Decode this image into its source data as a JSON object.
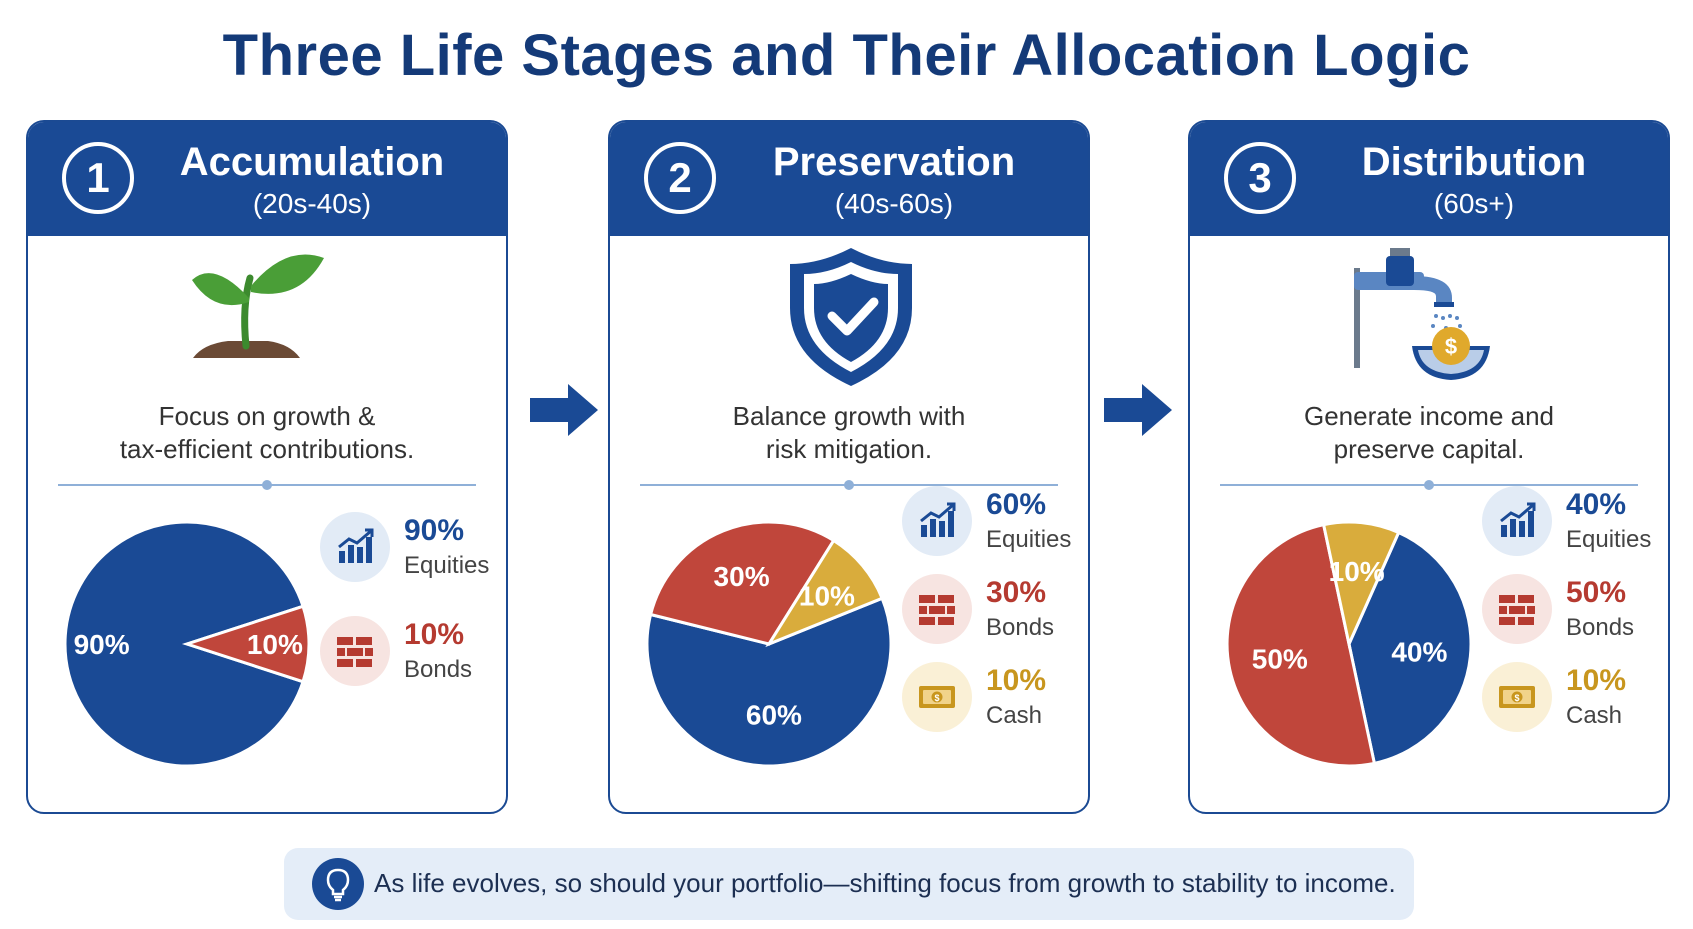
{
  "title": "Three Life Stages and Their Allocation Logic",
  "colors": {
    "header": "#1a4a95",
    "equities": "#1a4a95",
    "bonds": "#c0463b",
    "cash": "#d9ac3c"
  },
  "stages": [
    {
      "number": "1",
      "name": "Accumulation",
      "range": "(20s-40s)",
      "icon": "seedling-icon",
      "description_line1": "Focus on growth &",
      "description_line2": "tax-efficient contributions.",
      "legend": [
        {
          "pct": "90%",
          "name": "Equities",
          "icon": "growth-chart-icon"
        },
        {
          "pct": "10%",
          "name": "Bonds",
          "icon": "bricks-icon"
        }
      ]
    },
    {
      "number": "2",
      "name": "Preservation",
      "range": "(40s-60s)",
      "icon": "shield-check-icon",
      "description_line1": "Balance growth with",
      "description_line2": "risk mitigation.",
      "legend": [
        {
          "pct": "60%",
          "name": "Equities",
          "icon": "growth-chart-icon"
        },
        {
          "pct": "30%",
          "name": "Bonds",
          "icon": "bricks-icon"
        },
        {
          "pct": "10%",
          "name": "Cash",
          "icon": "cash-icon"
        }
      ]
    },
    {
      "number": "3",
      "name": "Distribution",
      "range": "(60s+)",
      "icon": "faucet-coin-icon",
      "description_line1": "Generate income and",
      "description_line2": "preserve capital.",
      "legend": [
        {
          "pct": "40%",
          "name": "Equities",
          "icon": "growth-chart-icon"
        },
        {
          "pct": "50%",
          "name": "Bonds",
          "icon": "bricks-icon"
        },
        {
          "pct": "10%",
          "name": "Cash",
          "icon": "cash-icon"
        }
      ]
    }
  ],
  "footer": {
    "icon": "lightbulb-icon",
    "text": "As life evolves, so should your portfolio—shifting focus from growth to stability to income."
  },
  "chart_data": [
    {
      "type": "pie",
      "categories": [
        "Equities",
        "Bonds"
      ],
      "values": [
        90,
        10
      ],
      "labels": [
        "90%",
        "10%"
      ]
    },
    {
      "type": "pie",
      "categories": [
        "Equities",
        "Bonds",
        "Cash"
      ],
      "values": [
        60,
        30,
        10
      ],
      "labels": [
        "60%",
        "30%",
        "10%"
      ]
    },
    {
      "type": "pie",
      "categories": [
        "Equities",
        "Bonds",
        "Cash"
      ],
      "values": [
        40,
        50,
        10
      ],
      "labels": [
        "40%",
        "50%",
        "10%"
      ]
    }
  ]
}
